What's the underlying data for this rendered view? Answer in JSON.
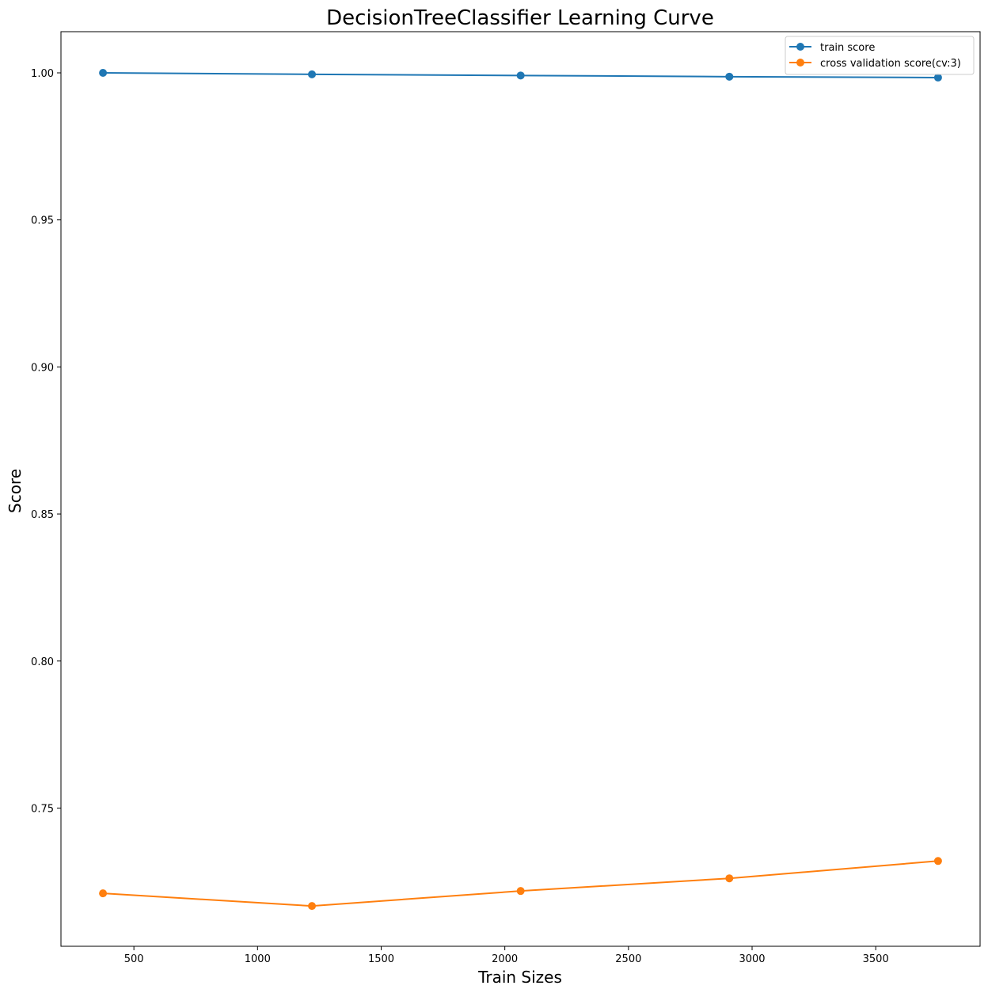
{
  "chart_data": {
    "type": "line",
    "title": "DecisionTreeClassifier Learning Curve",
    "xlabel": "Train Sizes",
    "ylabel": "Score",
    "x": [
      375,
      1220,
      2064,
      2908,
      3752
    ],
    "xlim": [
      205,
      3922
    ],
    "ylim": [
      0.703,
      1.014
    ],
    "xticks": [
      500,
      1000,
      1500,
      2000,
      2500,
      3000,
      3500
    ],
    "xtick_labels": [
      "500",
      "1000",
      "1500",
      "2000",
      "2500",
      "3000",
      "3500"
    ],
    "yticks": [
      0.75,
      0.8,
      0.85,
      0.9,
      0.95,
      1.0
    ],
    "ytick_labels": [
      "0.75",
      "0.80",
      "0.85",
      "0.90",
      "0.95",
      "1.00"
    ],
    "grid": false,
    "legend_position": "top-right",
    "series": [
      {
        "name": "train score",
        "color": "#1f77b4",
        "marker": "circle",
        "values": [
          1.0,
          0.9995,
          0.9991,
          0.9987,
          0.9984
        ]
      },
      {
        "name": "cross validation score(cv:3)",
        "color": "#ff7f0e",
        "marker": "circle",
        "values": [
          0.721,
          0.7167,
          0.7218,
          0.7261,
          0.732
        ]
      }
    ]
  }
}
